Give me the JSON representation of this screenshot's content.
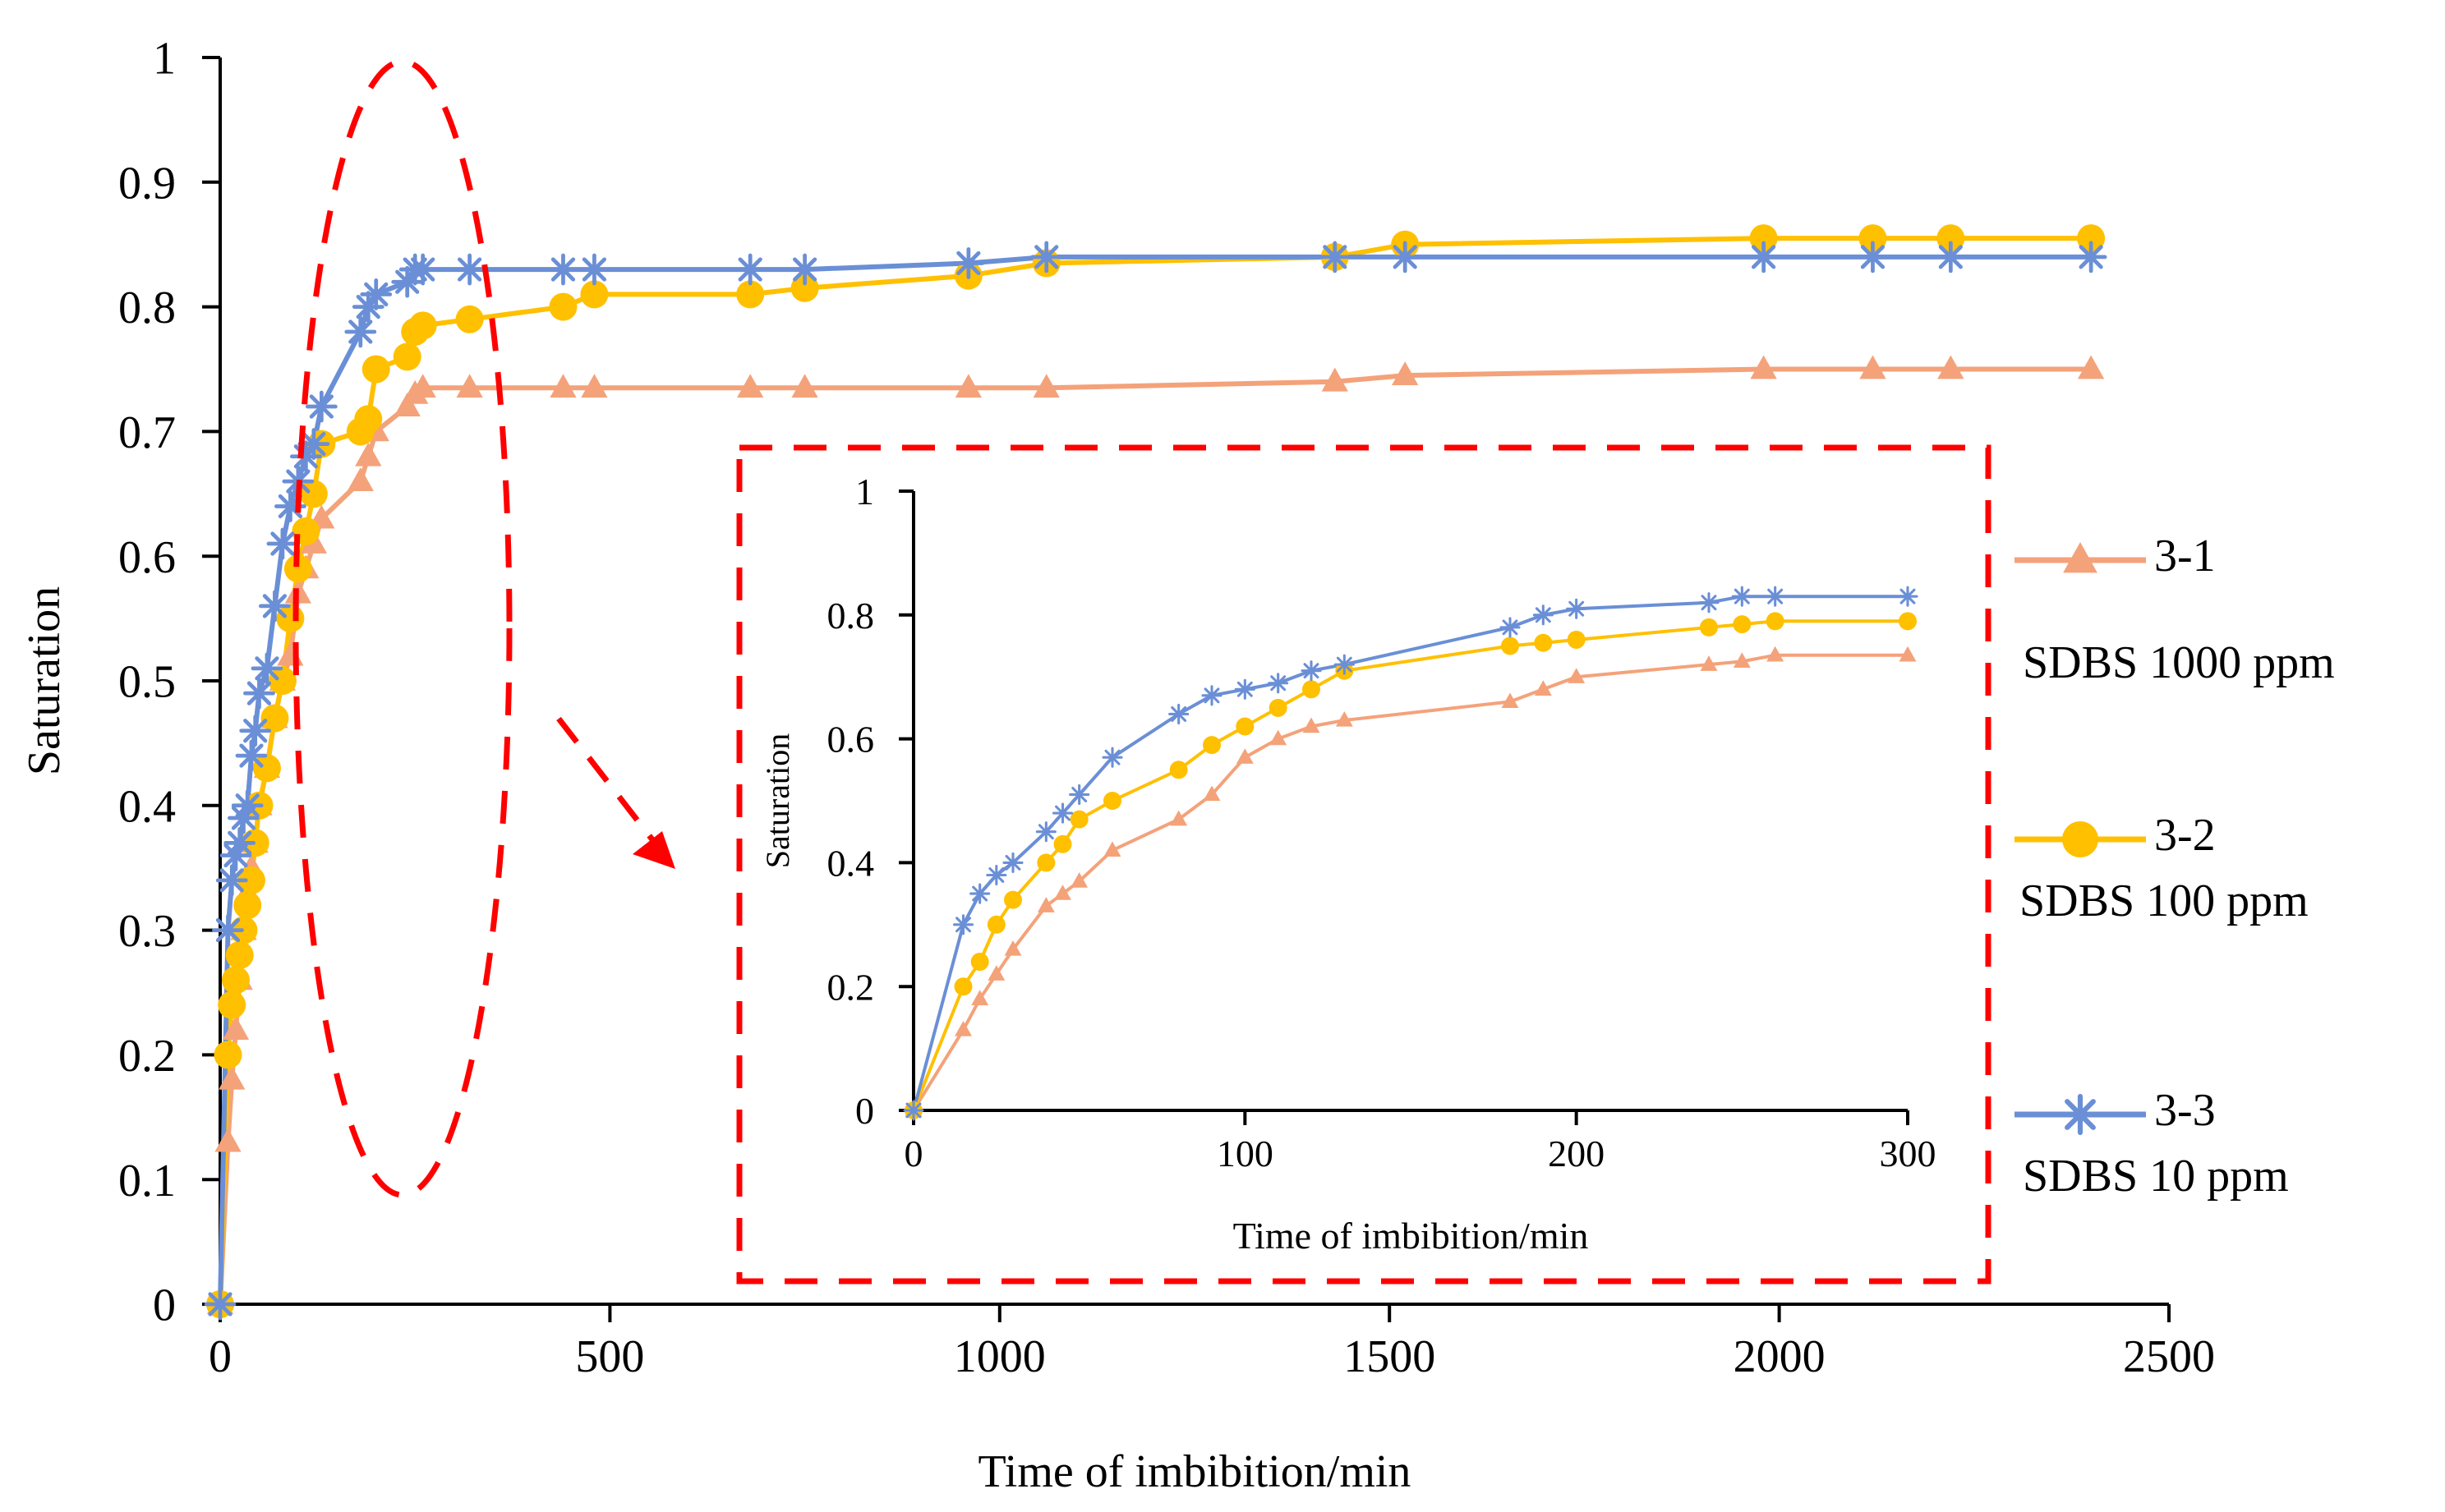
{
  "colors": {
    "s31": "#F4A27A",
    "s32": "#FFC000",
    "s33": "#6A8FD6",
    "annotation": "#FF0000",
    "axis": "#000000"
  },
  "legend": [
    {
      "series": "3-1",
      "description": "SDBS 1000 ppm",
      "marker": "triangle"
    },
    {
      "series": "3-2",
      "description": "SDBS 100 ppm",
      "marker": "circle"
    },
    {
      "series": "3-3",
      "description": "SDBS 10 ppm",
      "marker": "asterisk"
    }
  ],
  "chart_data": [
    {
      "id": "main",
      "type": "line",
      "title": "",
      "xlabel": "Time of imbibition/min",
      "ylabel": "Saturation",
      "xlim": [
        0,
        2500
      ],
      "ylim": [
        0,
        1
      ],
      "xticks": [
        0,
        500,
        1000,
        1500,
        2000,
        2500
      ],
      "yticks": [
        0,
        0.1,
        0.2,
        0.3,
        0.4,
        0.5,
        0.6,
        0.7,
        0.8,
        0.9,
        1
      ],
      "ytick_labels": [
        "0",
        "0.1",
        "0.2",
        "0.3",
        "0.4",
        "0.5",
        "0.6",
        "0.7",
        "0.8",
        "0.9",
        "1"
      ],
      "grid": false,
      "legend_position": "right",
      "series": [
        {
          "name": "3-1",
          "x": [
            0,
            10,
            15,
            20,
            25,
            30,
            35,
            40,
            45,
            50,
            60,
            70,
            80,
            90,
            100,
            110,
            120,
            130,
            180,
            190,
            200,
            240,
            250,
            260,
            320,
            440,
            480,
            680,
            750,
            960,
            1060,
            1430,
            1520,
            1980,
            2120,
            2220,
            2400
          ],
          "y": [
            0,
            0.13,
            0.18,
            0.22,
            0.26,
            0.3,
            0.33,
            0.35,
            0.37,
            0.4,
            0.43,
            0.47,
            0.5,
            0.52,
            0.57,
            0.59,
            0.61,
            0.63,
            0.66,
            0.68,
            0.7,
            0.72,
            0.73,
            0.735,
            0.735,
            0.735,
            0.735,
            0.735,
            0.735,
            0.735,
            0.735,
            0.74,
            0.745,
            0.75,
            0.75,
            0.75,
            0.75
          ]
        },
        {
          "name": "3-2",
          "x": [
            0,
            10,
            15,
            20,
            25,
            30,
            35,
            40,
            45,
            50,
            60,
            70,
            80,
            90,
            100,
            110,
            120,
            130,
            180,
            190,
            200,
            240,
            250,
            260,
            320,
            440,
            480,
            680,
            750,
            960,
            1060,
            1430,
            1520,
            1980,
            2120,
            2220,
            2400
          ],
          "y": [
            0,
            0.2,
            0.24,
            0.26,
            0.28,
            0.3,
            0.32,
            0.34,
            0.37,
            0.4,
            0.43,
            0.47,
            0.5,
            0.55,
            0.59,
            0.62,
            0.65,
            0.69,
            0.7,
            0.71,
            0.75,
            0.76,
            0.78,
            0.785,
            0.79,
            0.8,
            0.81,
            0.81,
            0.815,
            0.825,
            0.835,
            0.84,
            0.85,
            0.855,
            0.855,
            0.855,
            0.855
          ]
        },
        {
          "name": "3-3",
          "x": [
            0,
            10,
            15,
            20,
            25,
            30,
            35,
            40,
            45,
            50,
            60,
            70,
            80,
            90,
            100,
            110,
            120,
            130,
            180,
            190,
            200,
            240,
            250,
            260,
            320,
            440,
            480,
            680,
            750,
            960,
            1060,
            1430,
            1520,
            1980,
            2120,
            2220,
            2400
          ],
          "y": [
            0,
            0.3,
            0.34,
            0.36,
            0.37,
            0.39,
            0.4,
            0.44,
            0.46,
            0.49,
            0.51,
            0.56,
            0.61,
            0.64,
            0.66,
            0.68,
            0.69,
            0.72,
            0.78,
            0.8,
            0.81,
            0.82,
            0.83,
            0.83,
            0.83,
            0.83,
            0.83,
            0.83,
            0.83,
            0.835,
            0.84,
            0.84,
            0.84,
            0.84,
            0.84,
            0.84,
            0.84
          ]
        }
      ]
    },
    {
      "id": "inset",
      "type": "line",
      "title": "",
      "xlabel": "Time of imbibition/min",
      "ylabel": "Saturation",
      "xlim": [
        0,
        300
      ],
      "ylim": [
        0,
        1
      ],
      "xticks": [
        0,
        100,
        200,
        300
      ],
      "yticks": [
        0,
        0.2,
        0.4,
        0.6,
        0.8,
        1
      ],
      "ytick_labels": [
        "0",
        "0.2",
        "0.4",
        "0.6",
        "0.8",
        "1"
      ],
      "grid": false,
      "series": [
        {
          "name": "3-1",
          "x": [
            0,
            15,
            20,
            25,
            30,
            40,
            45,
            50,
            60,
            80,
            90,
            100,
            110,
            120,
            130,
            180,
            190,
            200,
            240,
            250,
            260,
            300
          ],
          "y": [
            0,
            0.13,
            0.18,
            0.22,
            0.26,
            0.33,
            0.35,
            0.37,
            0.42,
            0.47,
            0.51,
            0.57,
            0.6,
            0.62,
            0.63,
            0.66,
            0.68,
            0.7,
            0.72,
            0.725,
            0.735,
            0.735
          ]
        },
        {
          "name": "3-2",
          "x": [
            0,
            15,
            20,
            25,
            30,
            40,
            45,
            50,
            60,
            80,
            90,
            100,
            110,
            120,
            130,
            180,
            190,
            200,
            240,
            250,
            260,
            300
          ],
          "y": [
            0,
            0.2,
            0.24,
            0.3,
            0.34,
            0.4,
            0.43,
            0.47,
            0.5,
            0.55,
            0.59,
            0.62,
            0.65,
            0.68,
            0.71,
            0.75,
            0.755,
            0.76,
            0.78,
            0.785,
            0.79,
            0.79
          ]
        },
        {
          "name": "3-3",
          "x": [
            0,
            15,
            20,
            25,
            30,
            40,
            45,
            50,
            60,
            80,
            90,
            100,
            110,
            120,
            130,
            180,
            190,
            200,
            240,
            250,
            260,
            300
          ],
          "y": [
            0,
            0.3,
            0.35,
            0.38,
            0.4,
            0.45,
            0.48,
            0.51,
            0.57,
            0.64,
            0.67,
            0.68,
            0.69,
            0.71,
            0.72,
            0.78,
            0.8,
            0.81,
            0.82,
            0.83,
            0.83,
            0.83
          ]
        }
      ]
    }
  ]
}
